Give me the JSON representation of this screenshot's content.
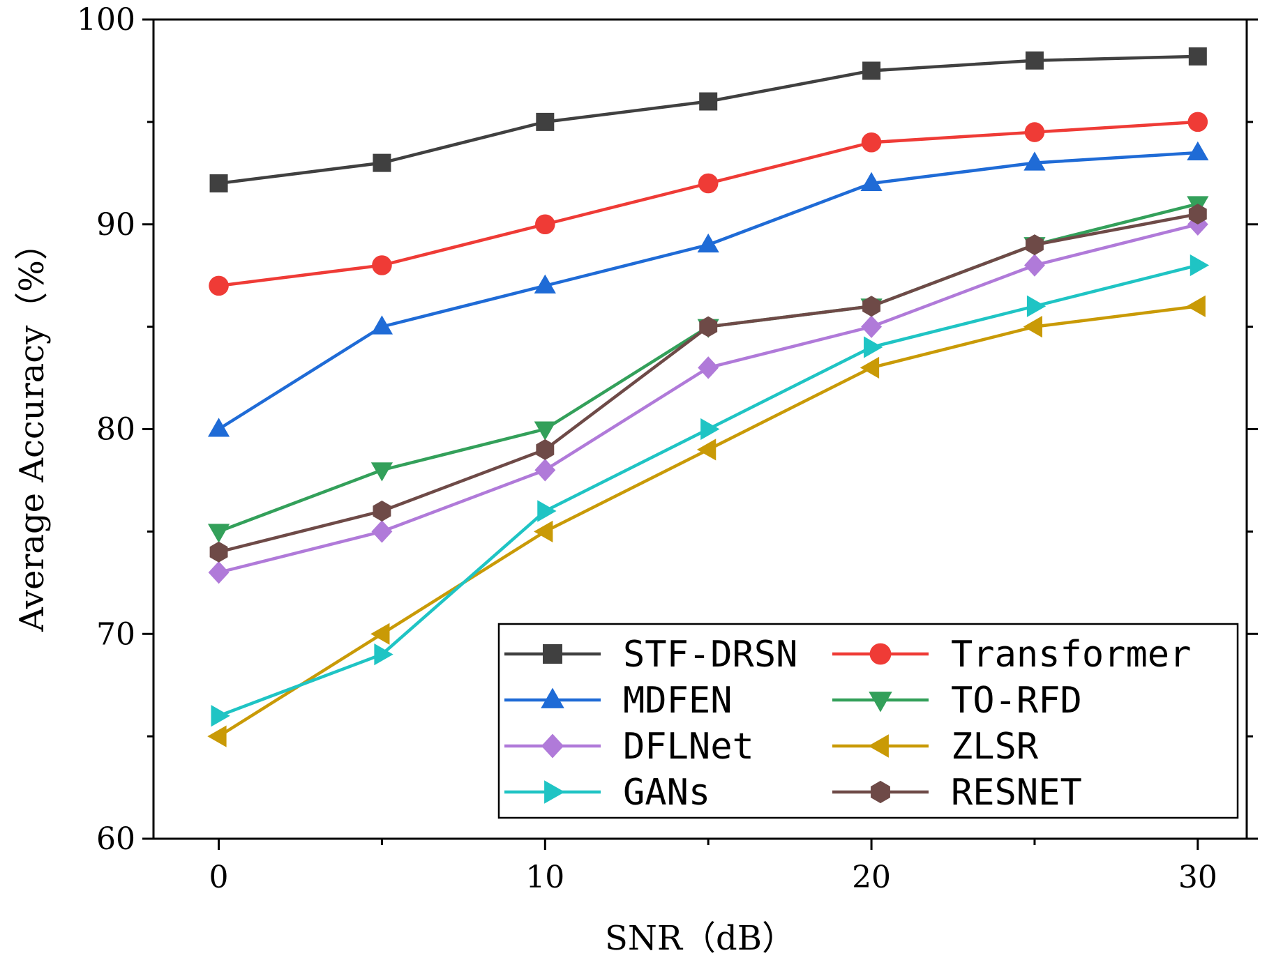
{
  "chart_data": {
    "type": "line",
    "xlabel": "SNR（dB）",
    "ylabel": "Average Accuracy（%）",
    "xlim": [
      -2,
      31.5
    ],
    "ylim": [
      60,
      100
    ],
    "xticks": [
      0,
      10,
      20,
      30
    ],
    "yticks": [
      60,
      70,
      80,
      90,
      100
    ],
    "x_minor_ticks": [
      5,
      15,
      25
    ],
    "y_minor_ticks": [
      65,
      75,
      85,
      95
    ],
    "grid": false,
    "legend_position": "lower-right",
    "legend_columns": 2,
    "x": [
      0,
      5,
      10,
      15,
      20,
      25,
      30
    ],
    "series": [
      {
        "name": "STF-DRSN",
        "color": "#404040",
        "marker": "square",
        "values": [
          92,
          93,
          95,
          96,
          97.5,
          98,
          98.2
        ]
      },
      {
        "name": "Transformer",
        "color": "#ef3b36",
        "marker": "circle",
        "values": [
          87,
          88,
          90,
          92,
          94,
          94.5,
          95
        ]
      },
      {
        "name": "MDFEN",
        "color": "#1f6bd6",
        "marker": "triangle-up",
        "values": [
          80,
          85,
          87,
          89,
          92,
          93,
          93.5
        ]
      },
      {
        "name": "TO-RFD",
        "color": "#33a05a",
        "marker": "triangle-down",
        "values": [
          75,
          78,
          80,
          85,
          86,
          89,
          91
        ]
      },
      {
        "name": "DFLNet",
        "color": "#b07ad9",
        "marker": "diamond",
        "values": [
          73,
          75,
          78,
          83,
          85,
          88,
          90
        ]
      },
      {
        "name": "ZLSR",
        "color": "#c99a06",
        "marker": "triangle-left",
        "values": [
          65,
          70,
          75,
          79,
          83,
          85,
          86
        ]
      },
      {
        "name": "GANs",
        "color": "#1fc4c4",
        "marker": "triangle-right",
        "values": [
          66,
          69,
          76,
          80,
          84,
          86,
          88
        ]
      },
      {
        "name": "RESNET",
        "color": "#6e4a47",
        "marker": "hexagon",
        "values": [
          74,
          76,
          79,
          85,
          86,
          89,
          90.5
        ]
      }
    ]
  }
}
